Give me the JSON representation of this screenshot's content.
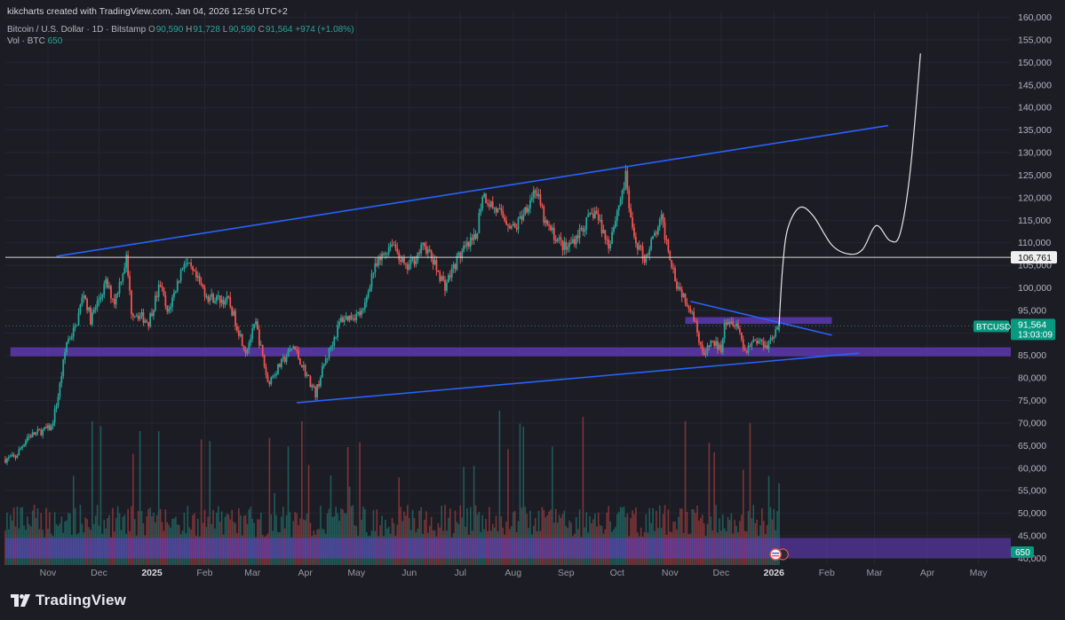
{
  "header": {
    "attribution": "kikcharts created with TradingView.com, Jan 04, 2026 12:56 UTC+2",
    "symbol_line": "Bitcoin / U.S. Dollar · 1D · Bitstamp",
    "ohlc": {
      "o_label": "O",
      "o": "90,590",
      "h_label": "H",
      "h": "91,728",
      "l_label": "L",
      "l": "90,590",
      "c_label": "C",
      "c": "91,564",
      "change": "+974 (+1.08%)"
    },
    "vol_label": "Vol · BTC",
    "vol_value": "650"
  },
  "brand": {
    "name": "TradingView",
    "icon": "tradingview-logo-icon"
  },
  "colors": {
    "background": "#1c1c24",
    "up": "#26a69a",
    "down": "#ef5350",
    "trendline": "#2962ff",
    "zone": "#6a3fc8",
    "projection": "#e6e6e6",
    "price_tag": "#089981"
  },
  "chart_data": {
    "type": "candlestick",
    "symbol": "BTCUSD",
    "interval": "1D",
    "y_axis": {
      "side": "right",
      "ticks": [
        40000,
        45000,
        50000,
        55000,
        60000,
        65000,
        70000,
        75000,
        80000,
        85000,
        90000,
        95000,
        100000,
        105000,
        110000,
        115000,
        120000,
        125000,
        130000,
        135000,
        140000,
        145000,
        150000,
        155000,
        160000
      ],
      "tick_labels": [
        "40,000",
        "45,000",
        "50,000",
        "55,000",
        "60,000",
        "65,000",
        "70,000",
        "75,000",
        "80,000",
        "85,000",
        "90,000",
        "95,000",
        "100,000",
        "105,000",
        "110,000",
        "115,000",
        "120,000",
        "125,000",
        "130,000",
        "135,000",
        "140,000",
        "145,000",
        "150,000",
        "155,000",
        "160,000"
      ],
      "range": [
        38500,
        161500
      ]
    },
    "x_axis": {
      "range": [
        "2024-10-07",
        "2026-05-20"
      ],
      "ticks": [
        {
          "date": "2024-11-01",
          "label": "Nov",
          "bold": false
        },
        {
          "date": "2024-12-01",
          "label": "Dec",
          "bold": false
        },
        {
          "date": "2025-01-01",
          "label": "2025",
          "bold": true
        },
        {
          "date": "2025-02-01",
          "label": "Feb",
          "bold": false
        },
        {
          "date": "2025-03-01",
          "label": "Mar",
          "bold": false
        },
        {
          "date": "2025-04-01",
          "label": "Apr",
          "bold": false
        },
        {
          "date": "2025-05-01",
          "label": "May",
          "bold": false
        },
        {
          "date": "2025-06-01",
          "label": "Jun",
          "bold": false
        },
        {
          "date": "2025-07-01",
          "label": "Jul",
          "bold": false
        },
        {
          "date": "2025-08-01",
          "label": "Aug",
          "bold": false
        },
        {
          "date": "2025-09-01",
          "label": "Sep",
          "bold": false
        },
        {
          "date": "2025-10-01",
          "label": "Oct",
          "bold": false
        },
        {
          "date": "2025-11-01",
          "label": "Nov",
          "bold": false
        },
        {
          "date": "2025-12-01",
          "label": "Dec",
          "bold": false
        },
        {
          "date": "2026-01-01",
          "label": "2026",
          "bold": true
        },
        {
          "date": "2026-02-01",
          "label": "Feb",
          "bold": false
        },
        {
          "date": "2026-03-01",
          "label": "Mar",
          "bold": false
        },
        {
          "date": "2026-04-01",
          "label": "Apr",
          "bold": false
        },
        {
          "date": "2026-05-01",
          "label": "May",
          "bold": false
        }
      ]
    },
    "price_path": [
      [
        "2024-10-07",
        62000
      ],
      [
        "2024-10-13",
        62500
      ],
      [
        "2024-10-20",
        67000
      ],
      [
        "2024-10-27",
        68000
      ],
      [
        "2024-11-03",
        69000
      ],
      [
        "2024-11-07",
        76000
      ],
      [
        "2024-11-12",
        88000
      ],
      [
        "2024-11-17",
        91000
      ],
      [
        "2024-11-22",
        99000
      ],
      [
        "2024-11-26",
        93000
      ],
      [
        "2024-12-05",
        101000
      ],
      [
        "2024-12-10",
        97000
      ],
      [
        "2024-12-17",
        106500
      ],
      [
        "2024-12-20",
        95000
      ],
      [
        "2024-12-30",
        92500
      ],
      [
        "2025-01-06",
        101000
      ],
      [
        "2025-01-10",
        94000
      ],
      [
        "2025-01-20",
        106000
      ],
      [
        "2025-01-27",
        102000
      ],
      [
        "2025-02-03",
        98000
      ],
      [
        "2025-02-15",
        97000
      ],
      [
        "2025-02-25",
        86000
      ],
      [
        "2025-03-03",
        92000
      ],
      [
        "2025-03-10",
        79000
      ],
      [
        "2025-03-25",
        87000
      ],
      [
        "2025-04-07",
        76500
      ],
      [
        "2025-04-12",
        83000
      ],
      [
        "2025-04-22",
        93000
      ],
      [
        "2025-05-05",
        94500
      ],
      [
        "2025-05-10",
        103000
      ],
      [
        "2025-05-22",
        110500
      ],
      [
        "2025-05-30",
        104000
      ],
      [
        "2025-06-10",
        109500
      ],
      [
        "2025-06-22",
        100500
      ],
      [
        "2025-06-30",
        107000
      ],
      [
        "2025-07-10",
        111000
      ],
      [
        "2025-07-14",
        121000
      ],
      [
        "2025-07-20",
        118000
      ],
      [
        "2025-08-02",
        113000
      ],
      [
        "2025-08-14",
        122000
      ],
      [
        "2025-08-20",
        114000
      ],
      [
        "2025-09-01",
        108500
      ],
      [
        "2025-09-18",
        117000
      ],
      [
        "2025-09-26",
        109500
      ],
      [
        "2025-10-06",
        124500
      ],
      [
        "2025-10-10",
        112000
      ],
      [
        "2025-10-17",
        106500
      ],
      [
        "2025-10-27",
        115000
      ],
      [
        "2025-11-05",
        101000
      ],
      [
        "2025-11-14",
        95000
      ],
      [
        "2025-11-21",
        84500
      ],
      [
        "2025-11-25",
        88000
      ],
      [
        "2025-12-01",
        86500
      ],
      [
        "2025-12-03",
        93000
      ],
      [
        "2025-12-10",
        92500
      ],
      [
        "2025-12-15",
        86000
      ],
      [
        "2025-12-20",
        88500
      ],
      [
        "2025-12-28",
        87500
      ],
      [
        "2026-01-04",
        91564
      ]
    ],
    "volume_scale_max": 1200,
    "levels": [
      {
        "type": "horizontal_line",
        "price": 106761,
        "label": "106,761"
      }
    ],
    "zones": [
      {
        "name": "support-zone",
        "from": 84800,
        "to": 86800,
        "start": "2024-10-10",
        "end": "2026-05-20"
      },
      {
        "name": "resistance-zone",
        "from": 92000,
        "to": 93500,
        "start": "2025-11-10",
        "end": "2026-02-04"
      },
      {
        "name": "volume-zone",
        "from": 40000,
        "to": 44500,
        "start": "2024-10-07",
        "end": "2026-05-20"
      }
    ],
    "trendlines": [
      {
        "name": "upper-channel",
        "points": [
          [
            "2024-11-06",
            107000
          ],
          [
            "2026-03-09",
            136000
          ]
        ]
      },
      {
        "name": "lower-channel",
        "points": [
          [
            "2025-03-27",
            74500
          ],
          [
            "2026-02-20",
            85500
          ]
        ]
      },
      {
        "name": "descending-resistance",
        "points": [
          [
            "2025-11-13",
            97000
          ],
          [
            "2026-02-04",
            89500
          ]
        ]
      }
    ],
    "projection": [
      [
        "2026-01-04",
        91564
      ],
      [
        "2026-01-06",
        104000
      ],
      [
        "2026-01-09",
        113000
      ],
      [
        "2026-01-16",
        117800
      ],
      [
        "2026-01-24",
        116000
      ],
      [
        "2026-02-04",
        109500
      ],
      [
        "2026-02-14",
        107500
      ],
      [
        "2026-02-22",
        108500
      ],
      [
        "2026-03-02",
        113800
      ],
      [
        "2026-03-10",
        110500
      ],
      [
        "2026-03-16",
        112000
      ],
      [
        "2026-03-22",
        126000
      ],
      [
        "2026-03-28",
        152000
      ]
    ],
    "last_price": {
      "symbol": "BTCUSD",
      "price": 91564,
      "label": "91,564",
      "countdown": "13:03:09"
    },
    "volume_last": {
      "value": 650,
      "label": "650"
    }
  }
}
